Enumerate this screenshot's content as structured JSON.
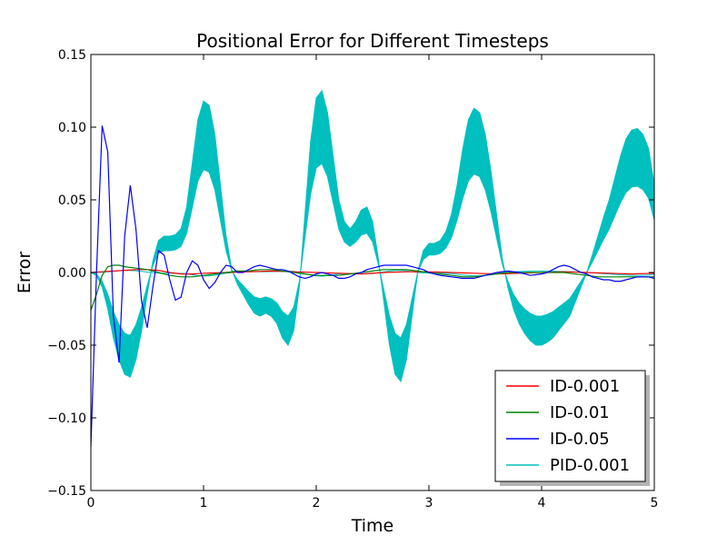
{
  "chart_data": {
    "type": "line",
    "title": "Positional Error for Different Timesteps",
    "xlabel": "Time",
    "ylabel": "Error",
    "xlim": [
      0,
      5
    ],
    "ylim": [
      -0.15,
      0.15
    ],
    "xticks": [
      "0",
      "1",
      "2",
      "3",
      "4",
      "5"
    ],
    "yticks": [
      "0.15",
      "0.10",
      "0.05",
      "0.00",
      "−0.05",
      "−0.10",
      "−0.15"
    ],
    "grid": false,
    "legend_position": "lower-right",
    "series": [
      {
        "name": "ID-0.001",
        "color": "#ff0000",
        "x": [
          0,
          0.1,
          0.2,
          0.3,
          0.4,
          0.5,
          0.6,
          0.7,
          0.8,
          0.9,
          1.0,
          1.2,
          1.4,
          1.6,
          1.8,
          2.0,
          2.2,
          2.4,
          2.6,
          2.8,
          3.0,
          3.2,
          3.4,
          3.6,
          3.8,
          4.0,
          4.2,
          4.4,
          4.6,
          4.8,
          5.0
        ],
        "y": [
          0,
          0.0005,
          0.001,
          0.0015,
          0.002,
          0.002,
          0.0015,
          0.0,
          -0.001,
          -0.001,
          -0.0005,
          0.0,
          0.0005,
          0.001,
          0.0005,
          0.0,
          -0.0005,
          -0.001,
          0.0,
          0.0005,
          0.0005,
          0.0,
          -0.0005,
          -0.001,
          -0.0005,
          0.0,
          0.0005,
          0.0,
          -0.0005,
          -0.001,
          -0.0005
        ]
      },
      {
        "name": "ID-0.01",
        "color": "#008000",
        "x": [
          0,
          0.05,
          0.1,
          0.15,
          0.2,
          0.25,
          0.3,
          0.4,
          0.5,
          0.6,
          0.7,
          0.8,
          0.9,
          1.0,
          1.1,
          1.2,
          1.3,
          1.4,
          1.5,
          1.6,
          1.7,
          1.8,
          1.9,
          2.0,
          2.1,
          2.2,
          2.3,
          2.4,
          2.5,
          2.6,
          2.7,
          2.8,
          2.9,
          3.0,
          3.1,
          3.2,
          3.3,
          3.4,
          3.5,
          3.6,
          3.7,
          3.8,
          3.9,
          4.0,
          4.1,
          4.2,
          4.3,
          4.4,
          4.5,
          4.6,
          4.7,
          4.8,
          4.9,
          5.0
        ],
        "y": [
          -0.026,
          -0.015,
          -0.002,
          0.004,
          0.005,
          0.005,
          0.004,
          0.003,
          0.002,
          0.0,
          -0.002,
          -0.003,
          -0.003,
          -0.002,
          -0.001,
          0.0,
          0.001,
          0.001,
          0.002,
          0.002,
          0.001,
          0.0,
          -0.001,
          -0.002,
          -0.002,
          -0.002,
          -0.001,
          0.0,
          0.001,
          0.002,
          0.002,
          0.002,
          0.001,
          0.0,
          -0.001,
          -0.002,
          -0.003,
          -0.003,
          -0.002,
          -0.001,
          0.0,
          0.0,
          0.0,
          0.0,
          0.0,
          0.0,
          -0.001,
          -0.002,
          -0.003,
          -0.003,
          -0.003,
          -0.003,
          -0.003,
          -0.003
        ]
      },
      {
        "name": "ID-0.05",
        "color": "#0000ff",
        "x": [
          0,
          0.05,
          0.1,
          0.15,
          0.2,
          0.25,
          0.3,
          0.35,
          0.4,
          0.45,
          0.5,
          0.55,
          0.6,
          0.65,
          0.7,
          0.75,
          0.8,
          0.85,
          0.9,
          0.95,
          1.0,
          1.05,
          1.1,
          1.15,
          1.2,
          1.25,
          1.3,
          1.35,
          1.4,
          1.45,
          1.5,
          1.55,
          1.6,
          1.65,
          1.7,
          1.75,
          1.8,
          1.85,
          1.9,
          1.95,
          2.0,
          2.05,
          2.1,
          2.15,
          2.2,
          2.25,
          2.3,
          2.35,
          2.4,
          2.45,
          2.5,
          2.55,
          2.6,
          2.65,
          2.7,
          2.75,
          2.8,
          2.85,
          2.9,
          2.95,
          3.0,
          3.1,
          3.2,
          3.3,
          3.4,
          3.5,
          3.6,
          3.7,
          3.8,
          3.9,
          4.0,
          4.05,
          4.1,
          4.15,
          4.2,
          4.25,
          4.3,
          4.35,
          4.4,
          4.45,
          4.5,
          4.55,
          4.6,
          4.65,
          4.7,
          4.75,
          4.8,
          4.85,
          4.9,
          4.95,
          5.0
        ],
        "y": [
          -0.12,
          0.0,
          0.101,
          0.083,
          -0.03,
          -0.062,
          0.025,
          0.06,
          0.03,
          -0.02,
          -0.038,
          -0.01,
          0.015,
          0.012,
          -0.005,
          -0.019,
          -0.017,
          0.0,
          0.008,
          0.005,
          -0.005,
          -0.011,
          -0.007,
          0.0,
          0.005,
          0.004,
          0.0,
          0.0,
          0.002,
          0.004,
          0.005,
          0.004,
          0.003,
          0.002,
          0.002,
          0.001,
          -0.001,
          -0.003,
          -0.004,
          -0.003,
          -0.001,
          0.0,
          -0.001,
          -0.002,
          -0.004,
          -0.004,
          -0.003,
          -0.001,
          0.0,
          0.002,
          0.003,
          0.004,
          0.005,
          0.005,
          0.005,
          0.005,
          0.005,
          0.004,
          0.003,
          0.002,
          0.0,
          -0.002,
          -0.003,
          -0.004,
          -0.004,
          -0.002,
          0.0,
          0.001,
          0.0,
          -0.002,
          -0.001,
          0.0,
          0.002,
          0.004,
          0.005,
          0.004,
          0.002,
          0.0,
          -0.001,
          -0.003,
          -0.004,
          -0.005,
          -0.005,
          -0.006,
          -0.006,
          -0.005,
          -0.004,
          -0.003,
          -0.003,
          -0.003,
          -0.004
        ]
      },
      {
        "name": "PID-0.001",
        "color": "#00bfbf",
        "band": true,
        "x": [
          0,
          0.05,
          0.1,
          0.15,
          0.2,
          0.25,
          0.3,
          0.35,
          0.4,
          0.45,
          0.5,
          0.55,
          0.6,
          0.65,
          0.7,
          0.75,
          0.8,
          0.85,
          0.9,
          0.95,
          1.0,
          1.05,
          1.1,
          1.15,
          1.2,
          1.25,
          1.3,
          1.35,
          1.4,
          1.45,
          1.5,
          1.55,
          1.6,
          1.65,
          1.7,
          1.75,
          1.8,
          1.85,
          1.9,
          1.95,
          2.0,
          2.05,
          2.1,
          2.15,
          2.2,
          2.25,
          2.3,
          2.35,
          2.4,
          2.45,
          2.5,
          2.55,
          2.6,
          2.65,
          2.7,
          2.75,
          2.8,
          2.85,
          2.9,
          2.95,
          3.0,
          3.05,
          3.1,
          3.15,
          3.2,
          3.25,
          3.3,
          3.35,
          3.4,
          3.45,
          3.5,
          3.55,
          3.6,
          3.65,
          3.7,
          3.75,
          3.8,
          3.85,
          3.9,
          3.95,
          4.0,
          4.05,
          4.1,
          4.15,
          4.2,
          4.25,
          4.3,
          4.35,
          4.4,
          4.45,
          4.5,
          4.55,
          4.6,
          4.65,
          4.7,
          4.75,
          4.8,
          4.85,
          4.9,
          4.95,
          5.0
        ],
        "upper": [
          0.0,
          -0.002,
          -0.01,
          -0.025,
          -0.045,
          -0.06,
          -0.07,
          -0.072,
          -0.06,
          -0.04,
          -0.015,
          0.008,
          0.022,
          0.025,
          0.025,
          0.026,
          0.03,
          0.045,
          0.075,
          0.105,
          0.118,
          0.115,
          0.095,
          0.06,
          0.025,
          0.002,
          -0.008,
          -0.015,
          -0.022,
          -0.028,
          -0.03,
          -0.028,
          -0.03,
          -0.035,
          -0.045,
          -0.05,
          -0.04,
          -0.01,
          0.04,
          0.09,
          0.12,
          0.125,
          0.11,
          0.08,
          0.05,
          0.035,
          0.03,
          0.035,
          0.043,
          0.045,
          0.035,
          0.01,
          -0.02,
          -0.05,
          -0.07,
          -0.075,
          -0.06,
          -0.03,
          0.0,
          0.015,
          0.02,
          0.02,
          0.022,
          0.028,
          0.04,
          0.06,
          0.085,
          0.105,
          0.113,
          0.11,
          0.095,
          0.07,
          0.04,
          0.01,
          -0.01,
          -0.025,
          -0.035,
          -0.042,
          -0.047,
          -0.05,
          -0.05,
          -0.048,
          -0.045,
          -0.04,
          -0.035,
          -0.03,
          -0.02,
          -0.01,
          0.0,
          0.012,
          0.025,
          0.038,
          0.05,
          0.065,
          0.08,
          0.092,
          0.098,
          0.099,
          0.095,
          0.085,
          0.06
        ]
      }
    ]
  }
}
